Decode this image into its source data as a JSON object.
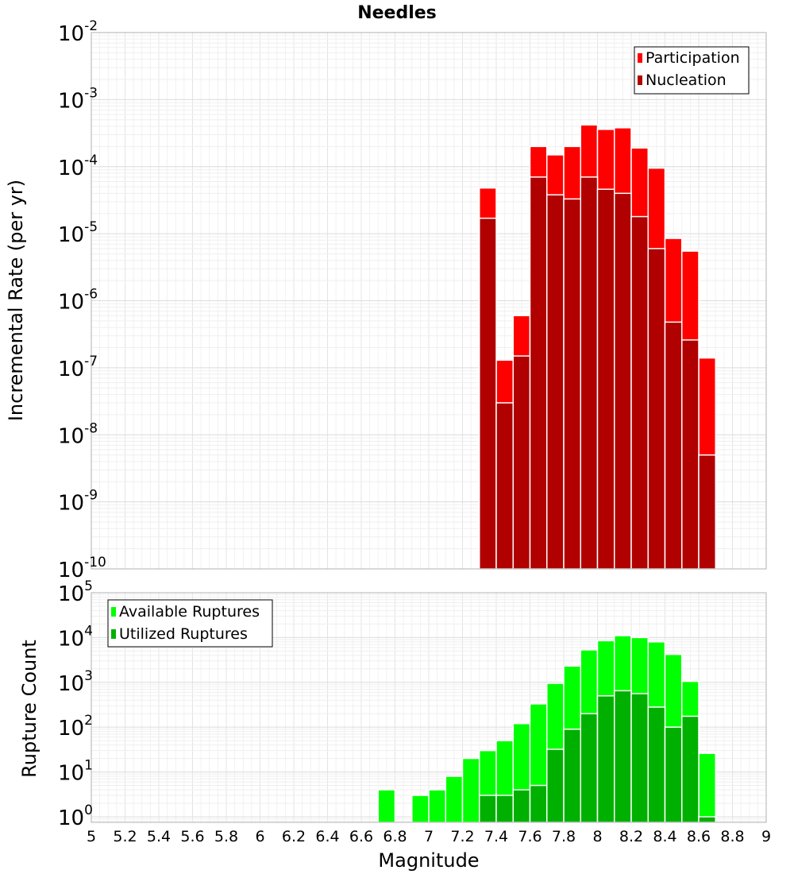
{
  "chart_data": [
    {
      "type": "bar",
      "title": "Needles",
      "xlabel": "",
      "ylabel": "Incremental Rate (per yr)",
      "xlim": [
        5,
        9
      ],
      "ylim": [
        1e-10,
        0.01
      ],
      "yscale": "log",
      "y_ticks": [
        {
          "base": "10",
          "exp": "-10"
        },
        {
          "base": "10",
          "exp": "-9"
        },
        {
          "base": "10",
          "exp": "-8"
        },
        {
          "base": "10",
          "exp": "-7"
        },
        {
          "base": "10",
          "exp": "-6"
        },
        {
          "base": "10",
          "exp": "-5"
        },
        {
          "base": "10",
          "exp": "-4"
        },
        {
          "base": "10",
          "exp": "-3"
        },
        {
          "base": "10",
          "exp": "-2"
        }
      ],
      "grid": true,
      "legend_position": "top-right",
      "bin_width": 0.1,
      "x": [
        7.35,
        7.45,
        7.55,
        7.65,
        7.75,
        7.85,
        7.95,
        8.05,
        8.15,
        8.25,
        8.35,
        8.45,
        8.55,
        8.65
      ],
      "series": [
        {
          "name": "Participation",
          "color": "#ff0000",
          "values": [
            4.8e-05,
            1.3e-07,
            6e-07,
            0.0002,
            0.00015,
            0.0002,
            0.00042,
            0.00036,
            0.00038,
            0.00019,
            9.5e-05,
            8.5e-06,
            5.5e-06,
            1.4e-07
          ]
        },
        {
          "name": "Nucleation",
          "color": "#b00000",
          "values": [
            1.7e-05,
            3e-08,
            1.5e-07,
            7e-05,
            3.8e-05,
            3.3e-05,
            7e-05,
            4.6e-05,
            4e-05,
            1.8e-05,
            6e-06,
            4.8e-07,
            2.6e-07,
            5e-09
          ]
        }
      ]
    },
    {
      "type": "bar",
      "title": "",
      "xlabel": "Magnitude",
      "ylabel": "Rupture Count",
      "xlim": [
        5,
        9
      ],
      "ylim": [
        0.75,
        100000.0
      ],
      "yscale": "log",
      "x_ticks": [
        "5",
        "5.2",
        "5.4",
        "5.6",
        "5.8",
        "6",
        "6.2",
        "6.4",
        "6.6",
        "6.8",
        "7",
        "7.2",
        "7.4",
        "7.6",
        "7.8",
        "8",
        "8.2",
        "8.4",
        "8.6",
        "8.8",
        "9"
      ],
      "y_ticks": [
        {
          "base": "10",
          "exp": "0"
        },
        {
          "base": "10",
          "exp": "1"
        },
        {
          "base": "10",
          "exp": "2"
        },
        {
          "base": "10",
          "exp": "3"
        },
        {
          "base": "10",
          "exp": "4"
        },
        {
          "base": "10",
          "exp": "5"
        }
      ],
      "grid": true,
      "legend_position": "top-left",
      "bin_width": 0.1,
      "x": [
        6.75,
        6.85,
        6.95,
        7.05,
        7.15,
        7.25,
        7.35,
        7.45,
        7.55,
        7.65,
        7.75,
        7.85,
        7.95,
        8.05,
        8.15,
        8.25,
        8.35,
        8.45,
        8.55,
        8.65
      ],
      "series": [
        {
          "name": "Available Ruptures",
          "color": "#00ff00",
          "values": [
            4,
            0,
            3,
            4,
            8,
            20,
            30,
            50,
            120,
            330,
            950,
            2300,
            5300,
            8500,
            11000,
            10000,
            8000,
            4200,
            1050,
            26
          ]
        },
        {
          "name": "Utilized Ruptures",
          "color": "#00b000",
          "values": [
            0,
            0,
            0,
            0,
            0,
            0,
            3,
            3,
            4,
            5,
            32,
            90,
            200,
            500,
            650,
            560,
            280,
            100,
            175,
            1
          ]
        }
      ]
    }
  ]
}
